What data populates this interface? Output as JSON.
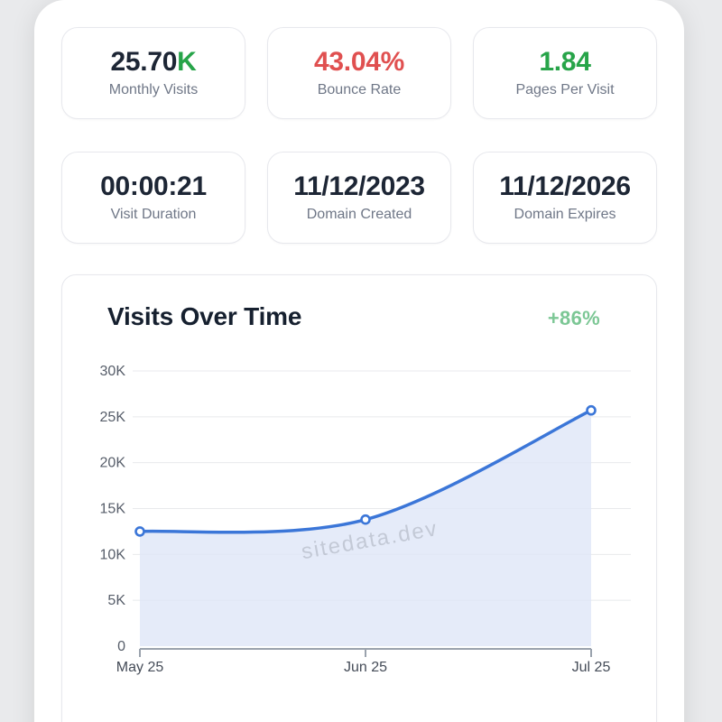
{
  "stats": [
    {
      "value": "25.70",
      "suffix": "K",
      "label": "Monthly Visits",
      "value_color": "#1d2635",
      "suffix_color": "#27a449"
    },
    {
      "value": "43.04%",
      "suffix": "",
      "label": "Bounce Rate",
      "value_color": "#e05050",
      "suffix_color": "#e05050"
    },
    {
      "value": "1.84",
      "suffix": "",
      "label": "Pages Per Visit",
      "value_color": "#27a449",
      "suffix_color": "#27a449"
    },
    {
      "value": "00:00:21",
      "suffix": "",
      "label": "Visit Duration",
      "value_color": "#1d2635",
      "suffix_color": "#1d2635"
    },
    {
      "value": "11/12/2023",
      "suffix": "",
      "label": "Domain Created",
      "value_color": "#1d2635",
      "suffix_color": "#1d2635"
    },
    {
      "value": "11/12/2026",
      "suffix": "",
      "label": "Domain Expires",
      "value_color": "#1d2635",
      "suffix_color": "#1d2635"
    }
  ],
  "chart_data": {
    "type": "area",
    "title": "Visits Over Time",
    "annotation": "+86%",
    "annotation_color": "#7cc795",
    "x": [
      "May 25",
      "Jun 25",
      "Jul 25"
    ],
    "series": [
      {
        "name": "Monthly Visits",
        "values": [
          12500,
          13800,
          25700
        ]
      }
    ],
    "ylim": [
      0,
      30000
    ],
    "yticks": [
      0,
      5000,
      10000,
      15000,
      20000,
      25000,
      30000
    ],
    "ytick_labels": [
      "0",
      "5K",
      "10K",
      "15K",
      "20K",
      "25K",
      "30K"
    ],
    "grid": true,
    "legend": false,
    "line_color": "#3b76d8",
    "fill_color": "#dfe6f7",
    "grid_color": "#e8e9ec",
    "axis_color": "#9aa2ad",
    "xtick_color": "#454c58",
    "ytick_color": "#565d69",
    "watermark": "sitedata.dev",
    "watermark_color": "#9ba1ad"
  }
}
